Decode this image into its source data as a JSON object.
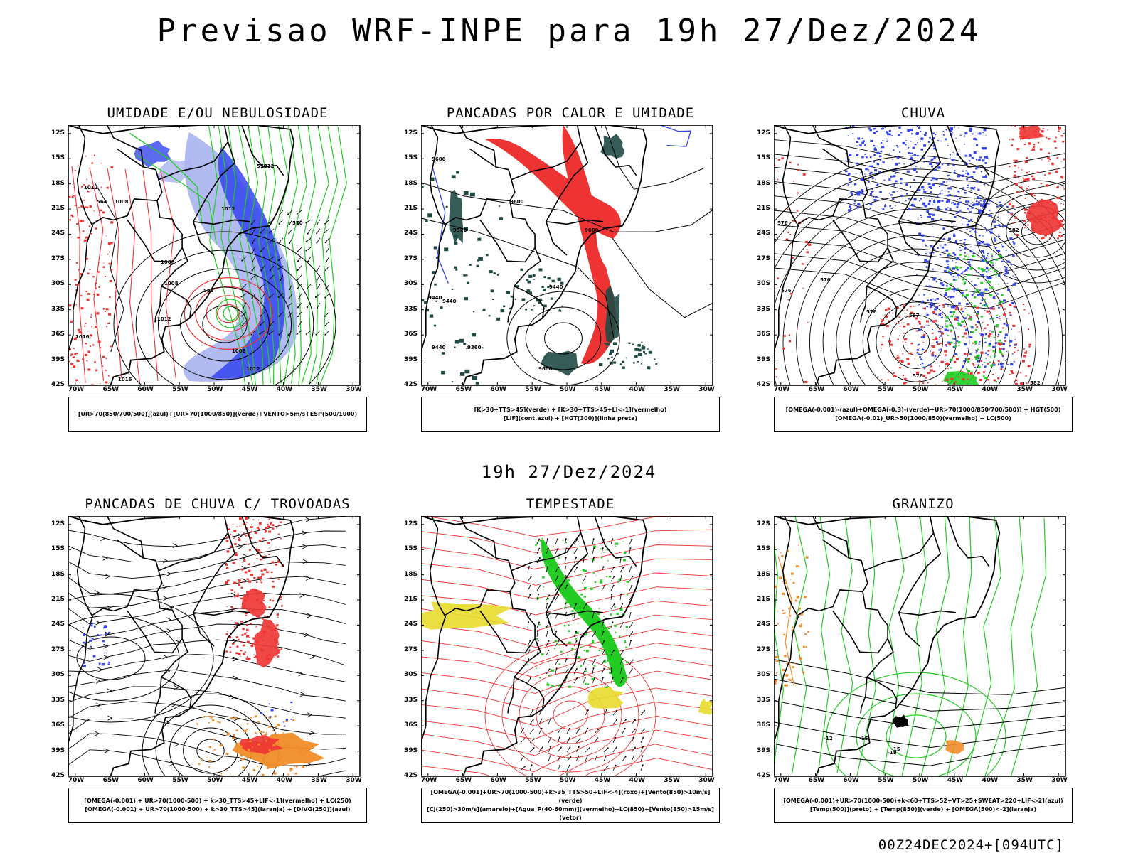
{
  "header": {
    "title": "Previsao WRF-INPE  para 19h 27/Dez/2024"
  },
  "mid_label": "19h 27/Dez/2024",
  "footer": "00Z24DEC2024+[094UTC]",
  "axes": {
    "lat_labels": [
      "12S",
      "15S",
      "18S",
      "21S",
      "24S",
      "27S",
      "30S",
      "33S",
      "36S",
      "39S",
      "42S"
    ],
    "lon_labels": [
      "70W",
      "65W",
      "60W",
      "55W",
      "50W",
      "45W",
      "40W",
      "35W",
      "30W"
    ]
  },
  "colors": {
    "blue": "#3344ee",
    "light_blue": "#aab4f0",
    "green": "#22cc22",
    "red": "#ee3333",
    "dark_teal": "#1f4a44",
    "orange": "#f08c28",
    "yellow": "#e8dc2c",
    "black": "#000000"
  },
  "panels": [
    {
      "id": "umidade",
      "title": "UMIDADE E/OU NEBULOSIDADE",
      "legend": [
        "[UR>70(850/700/500)](azul)+[UR>70(1000/850)](verde)+VENTO>5m/s+ESP(500/1000)"
      ],
      "contour_labels": [
        "1012",
        "1012",
        "1012",
        "1008",
        "1008",
        "1008",
        "1012",
        "1016",
        "570",
        "576",
        "564",
        "558",
        "1008",
        "1012",
        "1016"
      ]
    },
    {
      "id": "pancadas-calor",
      "title": "PANCADAS POR CALOR E UMIDADE",
      "legend": [
        "[K>30+TTS>45](verde) + [K>30+TTS>45+LI<-1](vermelho)",
        "[LIF](cont.azul) + [HGT(300)](linha preta)"
      ],
      "contour_labels": [
        "9600",
        "9600",
        "9600",
        "9520",
        "9440",
        "9440",
        "9440",
        "9440",
        "9360",
        "9600"
      ]
    },
    {
      "id": "chuva",
      "title": "CHUVA",
      "legend": [
        "[OMEGA(-0.001)-(azul)+OMEGA(-0.3)-(verde)+UR>70(1000/850/700/500)] + HGT(500)",
        "[OMEGA(-0.01)_UR>50(1000/850)(vermelho) + LC(500)"
      ],
      "contour_labels": [
        "576",
        "576",
        "576",
        "576",
        "567",
        "576",
        "582",
        "582"
      ]
    },
    {
      "id": "pancadas-trovoadas",
      "title": "PANCADAS DE CHUVA C/ TROVOADAS",
      "legend": [
        "[OMEGA(-0.001) + UR>70(1000-500) + k>30_TTS>45+LIF<-1](vermelho) + LC(250)",
        "[OMEGA(-0.001) + UR>70(1000-500) + k>30_TTS>45](laranja) + [DIVG(250)](azul)"
      ]
    },
    {
      "id": "tempestade",
      "title": "TEMPESTADE",
      "legend": [
        "[OMEGA(-0.001)+UR>70(1000-500)+k>35_TTS>50+LIF<-4](roxo)+[Vento(850)>10m/s](verde)",
        "[CJ(250)>30m/s](amarelo)+[Agua_P(40-60mm)](vermelho)+LC(850)+[Vento(850)>15m/s](vetor)"
      ]
    },
    {
      "id": "granizo",
      "title": "GRANIZO",
      "legend": [
        "[OMEGA(-0.001)+UR>70(1000-500)+k<60+TTS>52+VT>25+SWEAT>220+LIF<-2](azul)",
        "[Temp(500)](preto) + [Temp(850)](verde) + [OMEGA(500)<-2](laranja)"
      ],
      "contour_labels": [
        "-12",
        "-15",
        "-15",
        "-18"
      ]
    }
  ]
}
